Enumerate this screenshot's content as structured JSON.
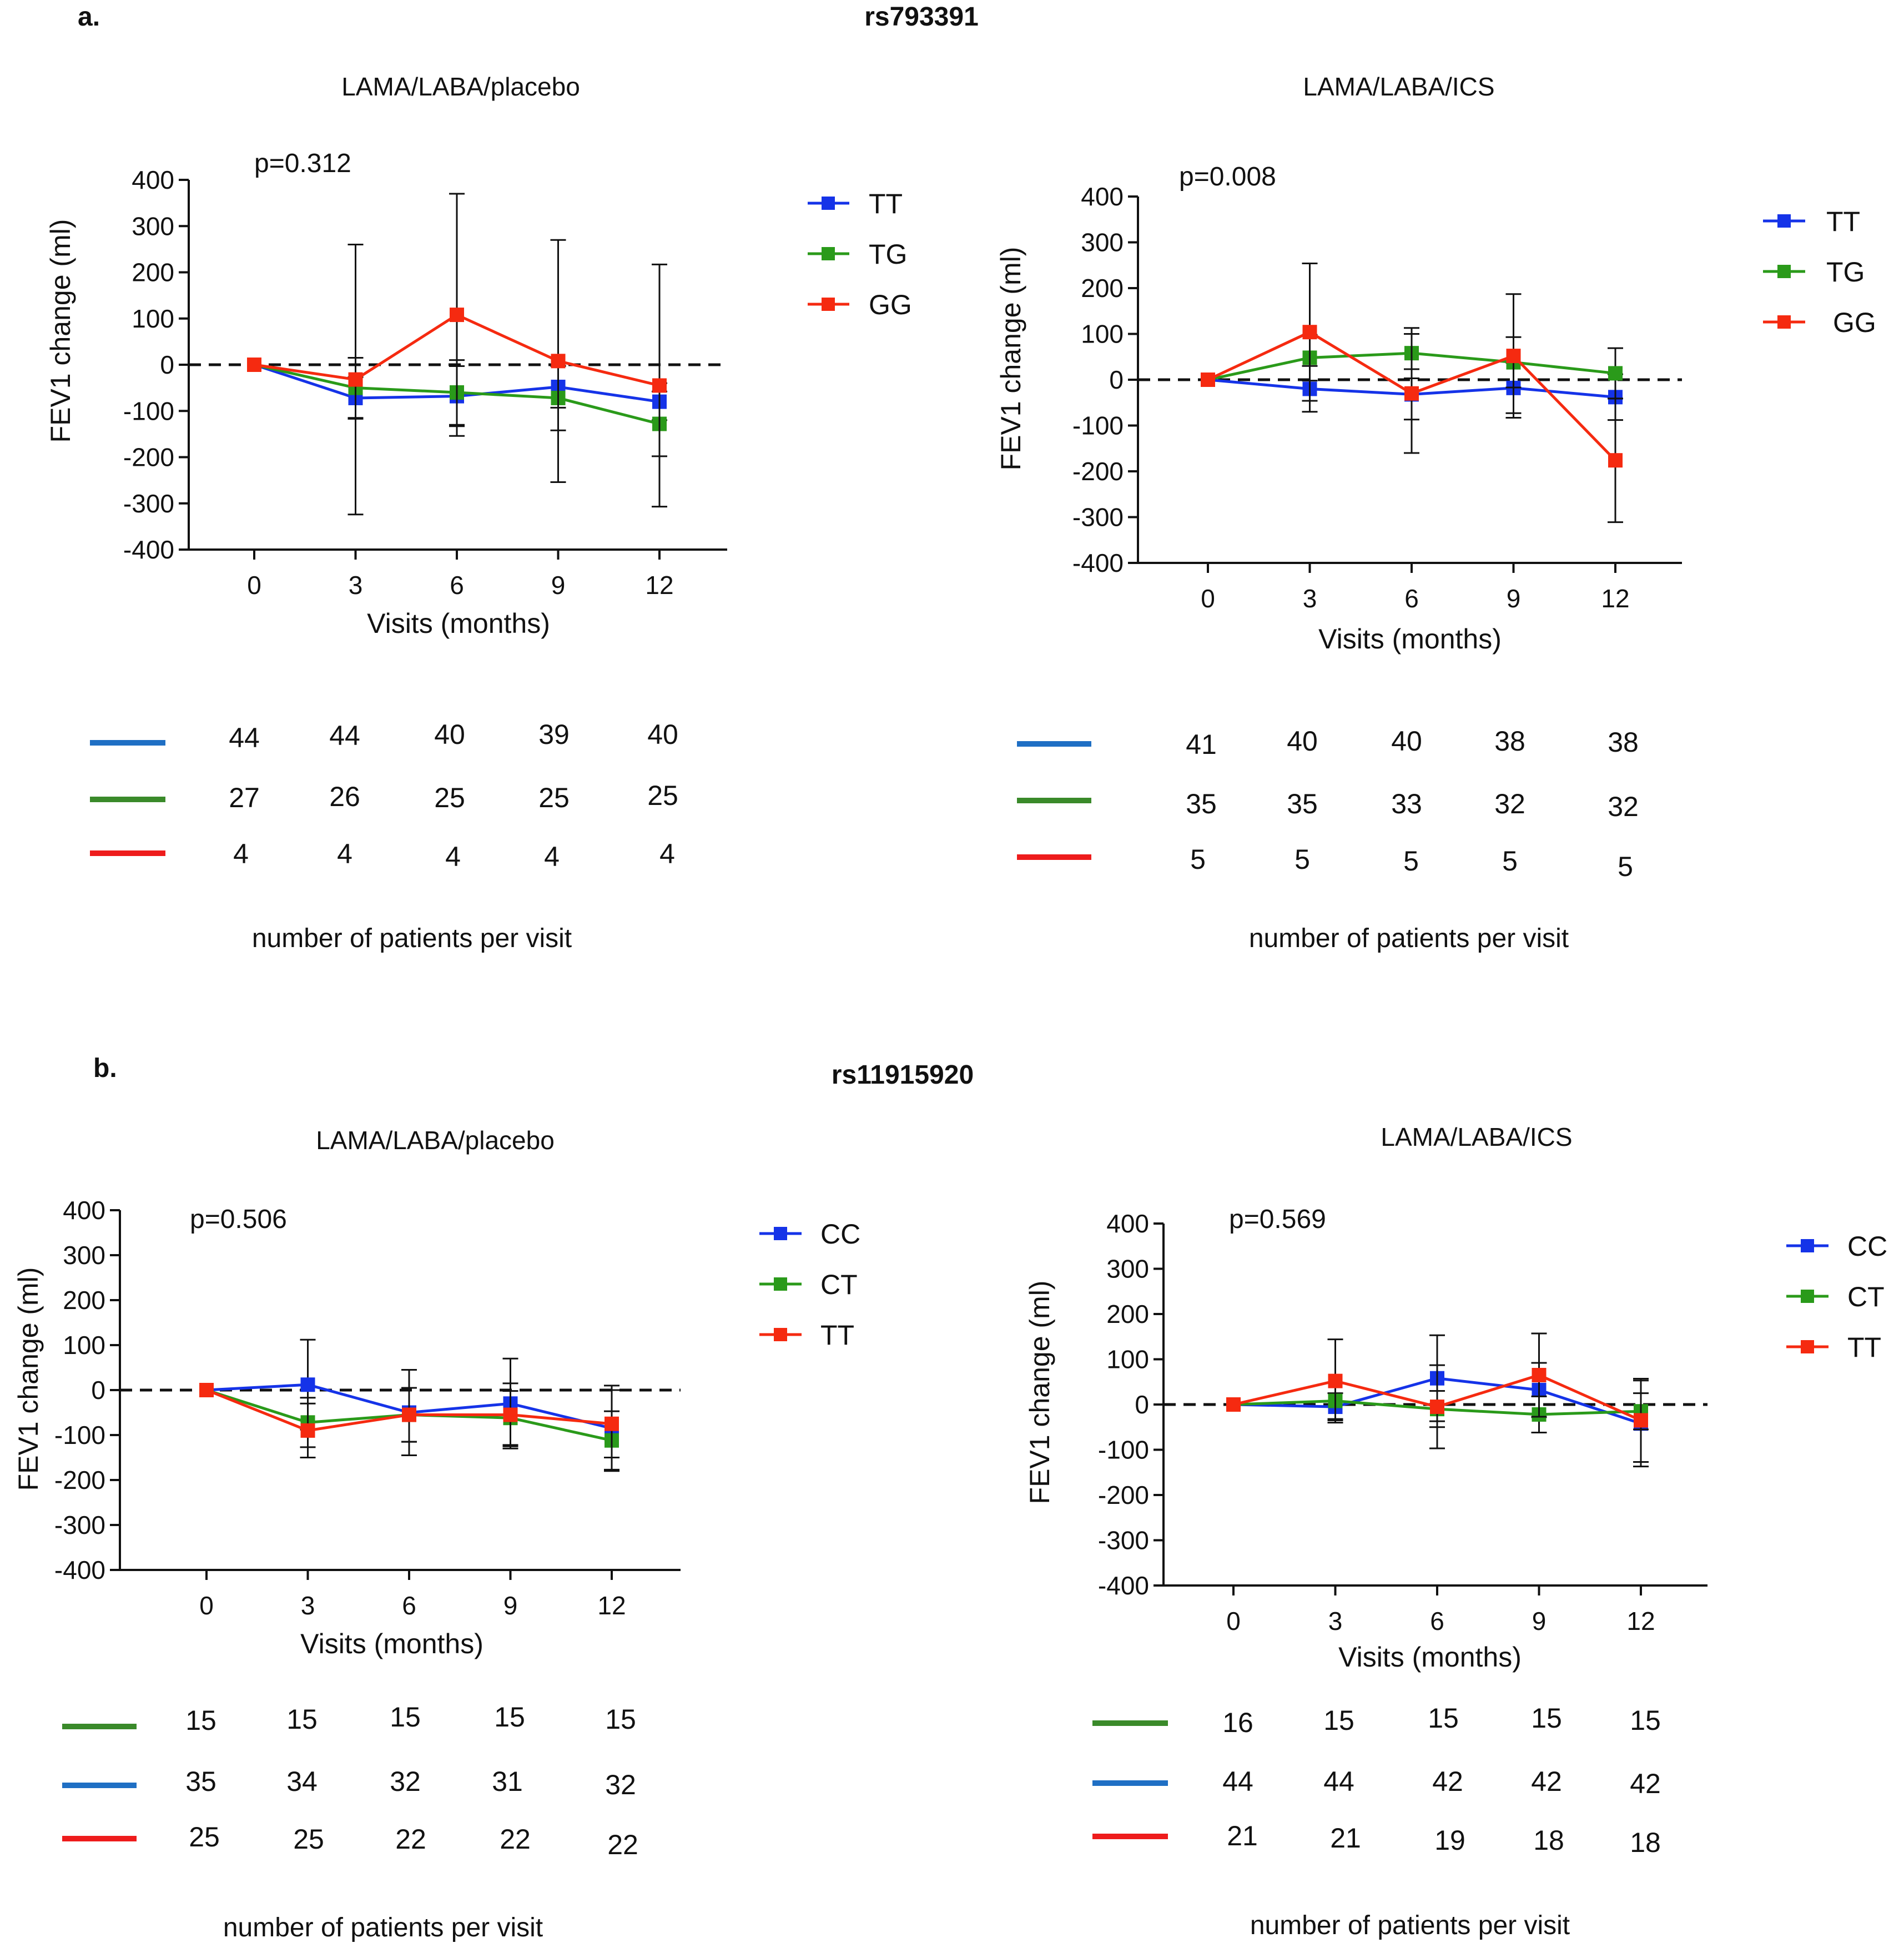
{
  "sections": [
    {
      "label": "a.",
      "snp": "rs793391",
      "panels": [
        {
          "title": "LAMA/LABA/placebo",
          "p_value": "p=0.312",
          "legend": [
            "TT",
            "TG",
            "GG"
          ],
          "counts": [
            {
              "color": "#1f6fc4",
              "values": [
                "44",
                "44",
                "40",
                "39",
                "40"
              ]
            },
            {
              "color": "#3a8a2a",
              "values": [
                "27",
                "26",
                "25",
                "25",
                "25"
              ]
            },
            {
              "color": "#ee1c1c",
              "values": [
                "4",
                "4",
                "4",
                "4",
                "4"
              ]
            }
          ],
          "caption": "number of patients per visit"
        },
        {
          "title": "LAMA/LABA/ICS",
          "p_value": "p=0.008",
          "legend": [
            "TT",
            "TG",
            "GG"
          ],
          "counts": [
            {
              "color": "#1f6fc4",
              "values": [
                "41",
                "40",
                "40",
                "38",
                "38"
              ]
            },
            {
              "color": "#3a8a2a",
              "values": [
                "35",
                "35",
                "33",
                "32",
                "32"
              ]
            },
            {
              "color": "#ee1c1c",
              "values": [
                "5",
                "5",
                "5",
                "5",
                "5"
              ]
            }
          ],
          "caption": "number of patients per visit"
        }
      ]
    },
    {
      "label": "b.",
      "snp": "rs11915920",
      "panels": [
        {
          "title": "LAMA/LABA/placebo",
          "p_value": "p=0.506",
          "legend": [
            "CC",
            "CT",
            "TT"
          ],
          "counts": [
            {
              "color": "#3a8a2a",
              "values": [
                "15",
                "15",
                "15",
                "15",
                "15"
              ]
            },
            {
              "color": "#1f6fc4",
              "values": [
                "35",
                "34",
                "32",
                "31",
                "32"
              ]
            },
            {
              "color": "#ee1c1c",
              "values": [
                "25",
                "25",
                "22",
                "22",
                "22"
              ]
            }
          ],
          "caption": "number of patients per visit"
        },
        {
          "title": "LAMA/LABA/ICS",
          "p_value": "p=0.569",
          "legend": [
            "CC",
            "CT",
            "TT"
          ],
          "counts": [
            {
              "color": "#3a8a2a",
              "values": [
                "16",
                "15",
                "15",
                "15",
                "15"
              ]
            },
            {
              "color": "#1f6fc4",
              "values": [
                "44",
                "44",
                "42",
                "42",
                "42"
              ]
            },
            {
              "color": "#ee1c1c",
              "values": [
                "21",
                "21",
                "19",
                "18",
                "18"
              ]
            }
          ],
          "caption": "number of patients per visit"
        }
      ]
    }
  ],
  "chart_data": [
    {
      "type": "line",
      "title": "LAMA/LABA/placebo",
      "xlabel": "Visits (months)",
      "ylabel": "FEV1 change (ml)",
      "x": [
        0,
        3,
        6,
        9,
        12
      ],
      "xticks": [
        "0",
        "3",
        "6",
        "9",
        "12"
      ],
      "yticks": [
        "400",
        "300",
        "200",
        "100",
        "0",
        "-100",
        "-200",
        "-300",
        "-400"
      ],
      "ylim": [
        -400,
        400
      ],
      "reference_line": 0,
      "series": [
        {
          "name": "TT",
          "color": "#1533e8",
          "values": [
            0,
            -72,
            -68,
            -48,
            -80
          ],
          "err_low": [
            0,
            45,
            65,
            45,
            40
          ],
          "err_high": [
            0,
            45,
            65,
            45,
            40
          ]
        },
        {
          "name": "TG",
          "color": "#2a9a1a",
          "values": [
            0,
            -50,
            -60,
            -72,
            -128
          ],
          "err_low": [
            0,
            65,
            70,
            70,
            70
          ],
          "err_high": [
            0,
            65,
            70,
            70,
            70
          ]
        },
        {
          "name": "GG",
          "color": "#f52a10",
          "values": [
            0,
            -32,
            108,
            8,
            -45
          ],
          "err_low": [
            0,
            292,
            262,
            262,
            262
          ],
          "err_high": [
            0,
            292,
            262,
            262,
            262
          ]
        }
      ]
    },
    {
      "type": "line",
      "title": "LAMA/LABA/ICS",
      "xlabel": "Visits (months)",
      "ylabel": "FEV1 change (ml)",
      "x": [
        0,
        3,
        6,
        9,
        12
      ],
      "xticks": [
        "0",
        "3",
        "6",
        "9",
        "12"
      ],
      "yticks": [
        "400",
        "300",
        "200",
        "100",
        "0",
        "-100",
        "-200",
        "-300",
        "-400"
      ],
      "ylim": [
        -400,
        400
      ],
      "reference_line": 0,
      "series": [
        {
          "name": "TT",
          "color": "#1533e8",
          "values": [
            0,
            -20,
            -32,
            -18,
            -38
          ],
          "err_low": [
            0,
            50,
            55,
            55,
            50
          ],
          "err_high": [
            0,
            50,
            55,
            55,
            50
          ]
        },
        {
          "name": "TG",
          "color": "#2a9a1a",
          "values": [
            0,
            48,
            58,
            38,
            14
          ],
          "err_low": [
            0,
            50,
            55,
            55,
            55
          ],
          "err_high": [
            0,
            50,
            55,
            55,
            55
          ]
        },
        {
          "name": "GG",
          "color": "#f52a10",
          "values": [
            0,
            104,
            -30,
            52,
            -176
          ],
          "err_low": [
            0,
            150,
            130,
            135,
            135
          ],
          "err_high": [
            0,
            150,
            130,
            135,
            135
          ]
        }
      ]
    },
    {
      "type": "line",
      "title": "LAMA/LABA/placebo",
      "xlabel": "Visits (months)",
      "ylabel": "FEV1 change (ml)",
      "x": [
        0,
        3,
        6,
        9,
        12
      ],
      "xticks": [
        "0",
        "3",
        "6",
        "9",
        "12"
      ],
      "yticks": [
        "400",
        "300",
        "200",
        "100",
        "0",
        "-100",
        "-200",
        "-300",
        "-400"
      ],
      "ylim": [
        -400,
        400
      ],
      "reference_line": 0,
      "series": [
        {
          "name": "CC",
          "color": "#1533e8",
          "values": [
            0,
            12,
            -50,
            -30,
            -85
          ],
          "err_low": [
            0,
            100,
            95,
            100,
            95
          ],
          "err_high": [
            0,
            100,
            95,
            100,
            95
          ]
        },
        {
          "name": "CT",
          "color": "#2a9a1a",
          "values": [
            0,
            -72,
            -55,
            -62,
            -112
          ],
          "err_low": [
            0,
            55,
            60,
            60,
            65
          ],
          "err_high": [
            0,
            55,
            60,
            60,
            65
          ]
        },
        {
          "name": "TT",
          "color": "#f52a10",
          "values": [
            0,
            -90,
            -55,
            -55,
            -75
          ],
          "err_low": [
            0,
            60,
            60,
            70,
            75
          ],
          "err_high": [
            0,
            60,
            60,
            70,
            75
          ]
        }
      ]
    },
    {
      "type": "line",
      "title": "LAMA/LABA/ICS",
      "xlabel": "Visits (months)",
      "ylabel": "FEV1 change (ml)",
      "x": [
        0,
        3,
        6,
        9,
        12
      ],
      "xticks": [
        "0",
        "3",
        "6",
        "9",
        "12"
      ],
      "yticks": [
        "400",
        "300",
        "200",
        "100",
        "0",
        "-100",
        "-200",
        "-300",
        "-400"
      ],
      "ylim": [
        -400,
        400
      ],
      "reference_line": 0,
      "series": [
        {
          "name": "CC",
          "color": "#1533e8",
          "values": [
            0,
            -5,
            58,
            32,
            -42
          ],
          "err_low": [
            0,
            30,
            95,
            60,
            95
          ],
          "err_high": [
            0,
            30,
            95,
            60,
            95
          ]
        },
        {
          "name": "CT",
          "color": "#2a9a1a",
          "values": [
            0,
            8,
            -10,
            -22,
            -15
          ],
          "err_low": [
            0,
            40,
            40,
            40,
            40
          ],
          "err_high": [
            0,
            40,
            40,
            40,
            40
          ]
        },
        {
          "name": "TT",
          "color": "#f52a10",
          "values": [
            0,
            52,
            -5,
            65,
            -35
          ],
          "err_low": [
            0,
            92,
            92,
            92,
            92
          ],
          "err_high": [
            0,
            92,
            92,
            92,
            92
          ]
        }
      ]
    }
  ]
}
